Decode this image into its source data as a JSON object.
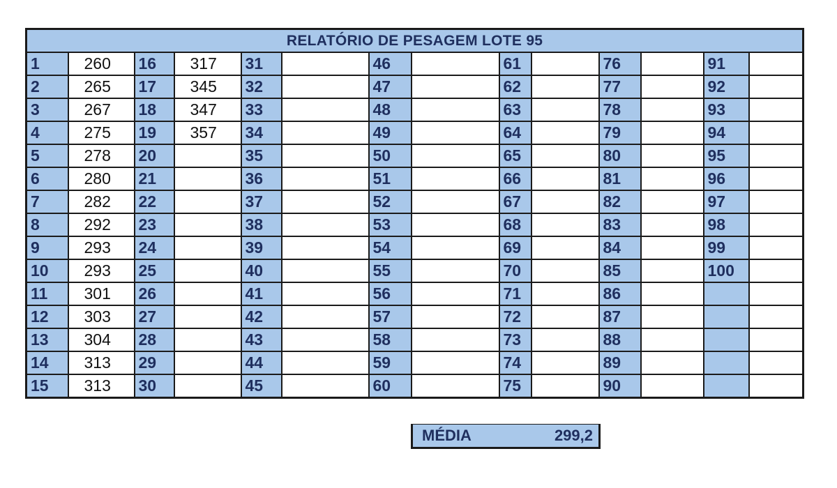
{
  "report": {
    "title": "RELATÓRIO DE PESAGEM LOTE 95",
    "rows": [
      [
        {
          "n": "1",
          "v": "260"
        },
        {
          "n": "16",
          "v": "317"
        },
        {
          "n": "31",
          "v": ""
        },
        {
          "n": "46",
          "v": ""
        },
        {
          "n": "61",
          "v": ""
        },
        {
          "n": "76",
          "v": ""
        },
        {
          "n": "91",
          "v": ""
        }
      ],
      [
        {
          "n": "2",
          "v": "265"
        },
        {
          "n": "17",
          "v": "345"
        },
        {
          "n": "32",
          "v": ""
        },
        {
          "n": "47",
          "v": ""
        },
        {
          "n": "62",
          "v": ""
        },
        {
          "n": "77",
          "v": ""
        },
        {
          "n": "92",
          "v": ""
        }
      ],
      [
        {
          "n": "3",
          "v": "267"
        },
        {
          "n": "18",
          "v": "347"
        },
        {
          "n": "33",
          "v": ""
        },
        {
          "n": "48",
          "v": ""
        },
        {
          "n": "63",
          "v": ""
        },
        {
          "n": "78",
          "v": ""
        },
        {
          "n": "93",
          "v": ""
        }
      ],
      [
        {
          "n": "4",
          "v": "275"
        },
        {
          "n": "19",
          "v": "357"
        },
        {
          "n": "34",
          "v": ""
        },
        {
          "n": "49",
          "v": ""
        },
        {
          "n": "64",
          "v": ""
        },
        {
          "n": "79",
          "v": ""
        },
        {
          "n": "94",
          "v": ""
        }
      ],
      [
        {
          "n": "5",
          "v": "278"
        },
        {
          "n": "20",
          "v": ""
        },
        {
          "n": "35",
          "v": ""
        },
        {
          "n": "50",
          "v": ""
        },
        {
          "n": "65",
          "v": ""
        },
        {
          "n": "80",
          "v": ""
        },
        {
          "n": "95",
          "v": ""
        }
      ],
      [
        {
          "n": "6",
          "v": "280"
        },
        {
          "n": "21",
          "v": ""
        },
        {
          "n": "36",
          "v": ""
        },
        {
          "n": "51",
          "v": ""
        },
        {
          "n": "66",
          "v": ""
        },
        {
          "n": "81",
          "v": ""
        },
        {
          "n": "96",
          "v": ""
        }
      ],
      [
        {
          "n": "7",
          "v": "282"
        },
        {
          "n": "22",
          "v": ""
        },
        {
          "n": "37",
          "v": ""
        },
        {
          "n": "52",
          "v": ""
        },
        {
          "n": "67",
          "v": ""
        },
        {
          "n": "82",
          "v": ""
        },
        {
          "n": "97",
          "v": ""
        }
      ],
      [
        {
          "n": "8",
          "v": "292"
        },
        {
          "n": "23",
          "v": ""
        },
        {
          "n": "38",
          "v": ""
        },
        {
          "n": "53",
          "v": ""
        },
        {
          "n": "68",
          "v": ""
        },
        {
          "n": "83",
          "v": ""
        },
        {
          "n": "98",
          "v": ""
        }
      ],
      [
        {
          "n": "9",
          "v": "293"
        },
        {
          "n": "24",
          "v": ""
        },
        {
          "n": "39",
          "v": ""
        },
        {
          "n": "54",
          "v": ""
        },
        {
          "n": "69",
          "v": ""
        },
        {
          "n": "84",
          "v": ""
        },
        {
          "n": "99",
          "v": ""
        }
      ],
      [
        {
          "n": "10",
          "v": "293"
        },
        {
          "n": "25",
          "v": ""
        },
        {
          "n": "40",
          "v": ""
        },
        {
          "n": "55",
          "v": ""
        },
        {
          "n": "70",
          "v": ""
        },
        {
          "n": "85",
          "v": ""
        },
        {
          "n": "100",
          "v": ""
        }
      ],
      [
        {
          "n": "11",
          "v": "301"
        },
        {
          "n": "26",
          "v": ""
        },
        {
          "n": "41",
          "v": ""
        },
        {
          "n": "56",
          "v": ""
        },
        {
          "n": "71",
          "v": ""
        },
        {
          "n": "86",
          "v": ""
        },
        {
          "n": "",
          "v": ""
        }
      ],
      [
        {
          "n": "12",
          "v": "303"
        },
        {
          "n": "27",
          "v": ""
        },
        {
          "n": "42",
          "v": ""
        },
        {
          "n": "57",
          "v": ""
        },
        {
          "n": "72",
          "v": ""
        },
        {
          "n": "87",
          "v": ""
        },
        {
          "n": "",
          "v": ""
        }
      ],
      [
        {
          "n": "13",
          "v": "304"
        },
        {
          "n": "28",
          "v": ""
        },
        {
          "n": "43",
          "v": ""
        },
        {
          "n": "58",
          "v": ""
        },
        {
          "n": "73",
          "v": ""
        },
        {
          "n": "88",
          "v": ""
        },
        {
          "n": "",
          "v": ""
        }
      ],
      [
        {
          "n": "14",
          "v": "313"
        },
        {
          "n": "29",
          "v": ""
        },
        {
          "n": "44",
          "v": ""
        },
        {
          "n": "59",
          "v": ""
        },
        {
          "n": "74",
          "v": ""
        },
        {
          "n": "89",
          "v": ""
        },
        {
          "n": "",
          "v": ""
        }
      ],
      [
        {
          "n": "15",
          "v": "313"
        },
        {
          "n": "30",
          "v": ""
        },
        {
          "n": "45",
          "v": ""
        },
        {
          "n": "60",
          "v": ""
        },
        {
          "n": "75",
          "v": ""
        },
        {
          "n": "90",
          "v": ""
        },
        {
          "n": "",
          "v": ""
        }
      ]
    ],
    "summary": {
      "label": "MÉDIA",
      "value": "299,2"
    }
  },
  "colors": {
    "header_fill": "#a9c8ea",
    "header_text": "#1f2f5e",
    "border": "#1a1a1a"
  }
}
